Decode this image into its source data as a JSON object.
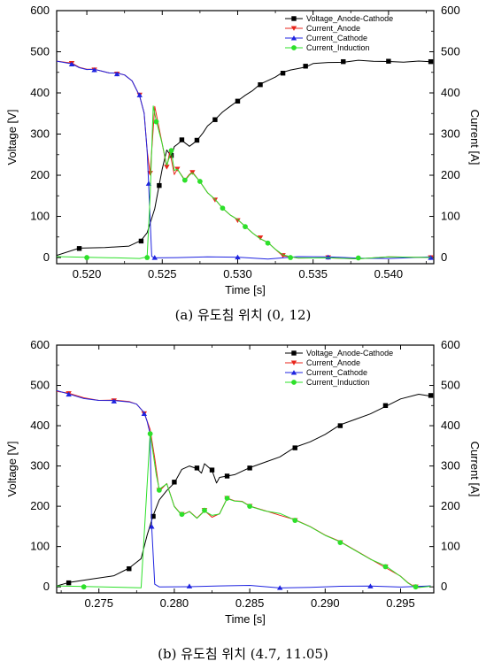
{
  "chart_data": [
    {
      "type": "line",
      "caption": "(a) 유도침 위치 (0, 12)",
      "xlabel": "Time [s]",
      "ylabel": "Voltage [V]",
      "y2label": "Current [A]",
      "xlim": [
        0.518,
        0.543
      ],
      "ylim": [
        -15,
        600
      ],
      "xticks": [
        0.52,
        0.525,
        0.53,
        0.535,
        0.54
      ],
      "xtick_labels": [
        "0.520",
        "0.525",
        "0.530",
        "0.535",
        "0.540"
      ],
      "yticks": [
        0,
        100,
        200,
        300,
        400,
        500,
        600
      ],
      "ytick_labels": [
        "0",
        "100",
        "200",
        "300",
        "400",
        "500",
        "600"
      ],
      "legend_position": "top-right",
      "series": [
        {
          "name": "Voltage_Anode-Cathode",
          "color": "#000000",
          "marker": "square",
          "x": [
            0.518,
            0.5195,
            0.5212,
            0.5228,
            0.5236,
            0.524,
            0.5245,
            0.5248,
            0.525,
            0.5253,
            0.5256,
            0.5258,
            0.526,
            0.5263,
            0.5268,
            0.527,
            0.5273,
            0.5277,
            0.528,
            0.5285,
            0.529,
            0.5295,
            0.53,
            0.5305,
            0.531,
            0.5315,
            0.532,
            0.5325,
            0.533,
            0.5335,
            0.534,
            0.5345,
            0.535,
            0.536,
            0.537,
            0.538,
            0.539,
            0.54,
            0.541,
            0.542,
            0.5428
          ],
          "y": [
            3,
            22,
            25,
            30,
            40,
            60,
            120,
            175,
            215,
            262,
            248,
            268,
            275,
            286,
            268,
            275,
            285,
            305,
            318,
            335,
            355,
            365,
            380,
            395,
            408,
            420,
            430,
            440,
            448,
            455,
            460,
            465,
            470,
            474,
            476,
            477,
            476,
            477,
            477,
            476,
            476
          ]
        },
        {
          "name": "Current_Anode",
          "color": "#e8251b",
          "marker": "triangle-down",
          "x": [
            0.518,
            0.519,
            0.5195,
            0.52,
            0.5205,
            0.521,
            0.5215,
            0.522,
            0.5225,
            0.523,
            0.5235,
            0.5238,
            0.524,
            0.5242,
            0.5245,
            0.525,
            0.5253,
            0.5255,
            0.5258,
            0.526,
            0.5265,
            0.5268,
            0.527,
            0.5275,
            0.528,
            0.5285,
            0.529,
            0.5295,
            0.53,
            0.5305,
            0.531,
            0.5315,
            0.532,
            0.5325,
            0.533,
            0.5335,
            0.534,
            0.536,
            0.538,
            0.54,
            0.5428
          ],
          "y": [
            475,
            472,
            463,
            460,
            456,
            453,
            450,
            446,
            443,
            430,
            395,
            350,
            260,
            205,
            365,
            275,
            220,
            260,
            200,
            215,
            190,
            200,
            207,
            185,
            160,
            140,
            120,
            105,
            90,
            75,
            60,
            48,
            35,
            20,
            5,
            0,
            -2,
            0,
            -1,
            0,
            0
          ]
        },
        {
          "name": "Current_Cathode",
          "color": "#1f24e0",
          "marker": "triangle-up",
          "x": [
            0.518,
            0.519,
            0.5195,
            0.52,
            0.5205,
            0.521,
            0.5215,
            0.522,
            0.5225,
            0.523,
            0.5235,
            0.5238,
            0.524,
            0.5241,
            0.5242,
            0.5243,
            0.5245,
            0.526,
            0.528,
            0.53,
            0.532,
            0.534,
            0.536,
            0.538,
            0.54,
            0.5428
          ],
          "y": [
            475,
            470,
            462,
            459,
            456,
            453,
            450,
            446,
            443,
            430,
            395,
            350,
            260,
            180,
            90,
            2,
            0,
            2,
            0,
            1,
            -2,
            0,
            1,
            -1,
            0,
            0
          ]
        },
        {
          "name": "Current_Induction",
          "color": "#2de02a",
          "marker": "circle",
          "x": [
            0.518,
            0.52,
            0.522,
            0.5235,
            0.524,
            0.5242,
            0.5244,
            0.5246,
            0.525,
            0.5253,
            0.5256,
            0.5258,
            0.526,
            0.5265,
            0.5268,
            0.527,
            0.5275,
            0.528,
            0.5285,
            0.529,
            0.5295,
            0.53,
            0.5305,
            0.531,
            0.5315,
            0.532,
            0.5325,
            0.533,
            0.5335,
            0.534,
            0.536,
            0.538,
            0.54,
            0.5428
          ],
          "y": [
            0,
            0,
            0,
            0,
            0,
            150,
            370,
            330,
            275,
            225,
            260,
            210,
            215,
            188,
            198,
            205,
            185,
            160,
            140,
            120,
            105,
            90,
            75,
            60,
            48,
            35,
            20,
            8,
            0,
            -2,
            0,
            -1,
            0,
            0
          ]
        }
      ]
    },
    {
      "type": "line",
      "caption": "(b) 유도침 위치 (4.7, 11.05)",
      "xlabel": "Time [s]",
      "ylabel": "Voltage [V]",
      "y2label": "Current [A]",
      "xlim": [
        0.2722,
        0.2972
      ],
      "ylim": [
        -15,
        600
      ],
      "xticks": [
        0.275,
        0.28,
        0.285,
        0.29,
        0.295
      ],
      "xtick_labels": [
        "0.275",
        "0.280",
        "0.285",
        "0.290",
        "0.295"
      ],
      "yticks": [
        0,
        100,
        200,
        300,
        400,
        500,
        600
      ],
      "ytick_labels": [
        "0",
        "100",
        "200",
        "300",
        "400",
        "500",
        "600"
      ],
      "legend_position": "top-right",
      "series": [
        {
          "name": "Voltage_Anode-Cathode",
          "color": "#000000",
          "marker": "square",
          "x": [
            0.2722,
            0.273,
            0.2745,
            0.276,
            0.277,
            0.2778,
            0.2782,
            0.2786,
            0.279,
            0.2795,
            0.28,
            0.2805,
            0.281,
            0.2815,
            0.2818,
            0.282,
            0.2825,
            0.2828,
            0.283,
            0.2835,
            0.284,
            0.2845,
            0.285,
            0.286,
            0.287,
            0.288,
            0.289,
            0.29,
            0.291,
            0.292,
            0.293,
            0.294,
            0.295,
            0.2962,
            0.297
          ],
          "y": [
            0,
            10,
            20,
            30,
            45,
            70,
            130,
            175,
            215,
            240,
            260,
            290,
            300,
            295,
            280,
            305,
            290,
            260,
            270,
            275,
            280,
            285,
            295,
            310,
            325,
            345,
            360,
            380,
            400,
            415,
            430,
            450,
            465,
            478,
            475
          ]
        },
        {
          "name": "Current_Anode",
          "color": "#e8251b",
          "marker": "triangle-down",
          "x": [
            0.2722,
            0.273,
            0.274,
            0.275,
            0.276,
            0.277,
            0.2775,
            0.278,
            0.2784,
            0.2787,
            0.279,
            0.2795,
            0.28,
            0.2805,
            0.281,
            0.2815,
            0.282,
            0.2825,
            0.283,
            0.2835,
            0.284,
            0.2845,
            0.285,
            0.286,
            0.287,
            0.288,
            0.289,
            0.29,
            0.291,
            0.292,
            0.293,
            0.294,
            0.295,
            0.2955,
            0.296,
            0.297
          ],
          "y": [
            483,
            480,
            470,
            465,
            462,
            460,
            455,
            430,
            390,
            320,
            240,
            255,
            200,
            180,
            185,
            170,
            190,
            175,
            180,
            220,
            215,
            210,
            200,
            190,
            180,
            165,
            150,
            130,
            110,
            90,
            70,
            50,
            25,
            10,
            0,
            0
          ]
        },
        {
          "name": "Current_Cathode",
          "color": "#1f24e0",
          "marker": "triangle-up",
          "x": [
            0.2722,
            0.273,
            0.274,
            0.275,
            0.276,
            0.277,
            0.2775,
            0.278,
            0.2782,
            0.2784,
            0.2785,
            0.2787,
            0.279,
            0.281,
            0.283,
            0.285,
            0.287,
            0.289,
            0.291,
            0.293,
            0.295,
            0.297
          ],
          "y": [
            485,
            478,
            468,
            465,
            461,
            459,
            455,
            430,
            410,
            380,
            150,
            5,
            0,
            2,
            0,
            3,
            -2,
            1,
            0,
            2,
            1,
            0
          ]
        },
        {
          "name": "Current_Induction",
          "color": "#2de02a",
          "marker": "circle",
          "x": [
            0.2722,
            0.274,
            0.276,
            0.2778,
            0.2784,
            0.2786,
            0.2788,
            0.279,
            0.2795,
            0.28,
            0.2805,
            0.281,
            0.2815,
            0.282,
            0.2825,
            0.283,
            0.2835,
            0.284,
            0.2845,
            0.285,
            0.286,
            0.287,
            0.288,
            0.289,
            0.29,
            0.291,
            0.292,
            0.293,
            0.294,
            0.295,
            0.2955,
            0.296,
            0.297
          ],
          "y": [
            0,
            0,
            0,
            0,
            380,
            330,
            280,
            240,
            255,
            200,
            180,
            185,
            170,
            190,
            175,
            180,
            220,
            215,
            210,
            200,
            190,
            180,
            165,
            150,
            130,
            110,
            90,
            70,
            50,
            25,
            10,
            0,
            0
          ]
        }
      ]
    }
  ]
}
